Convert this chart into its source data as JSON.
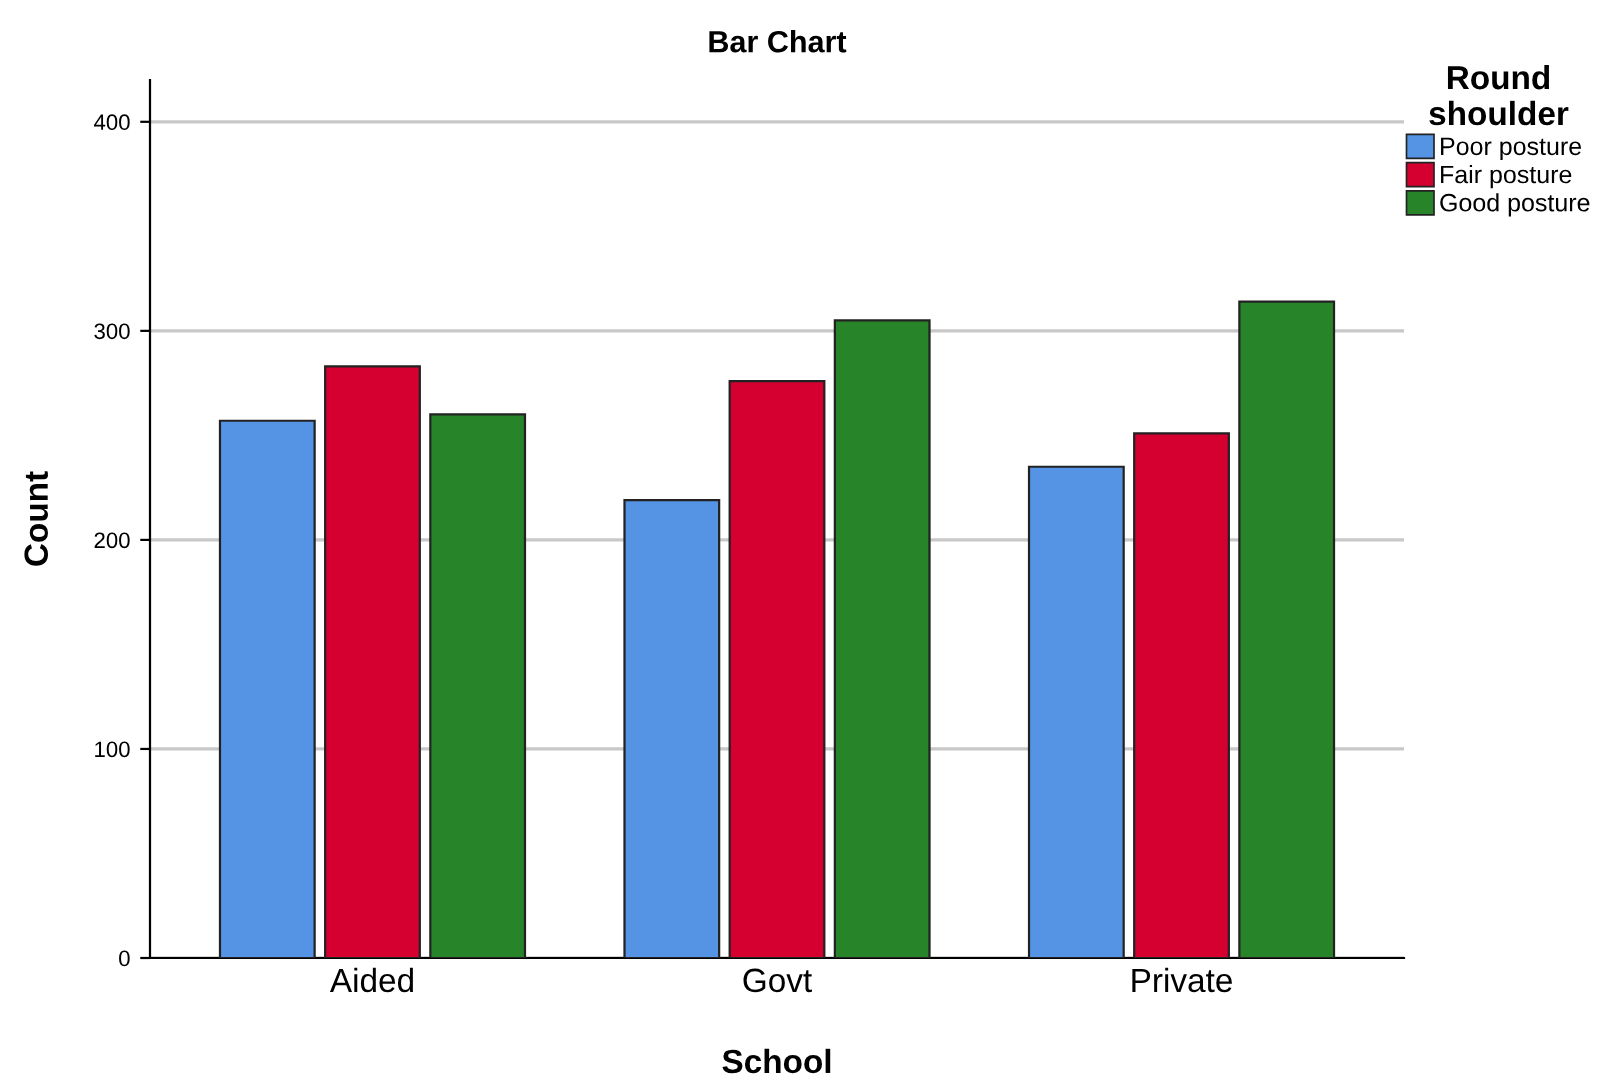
{
  "chart_data": {
    "type": "bar",
    "title": "Bar Chart",
    "xlabel": "School",
    "ylabel": "Count",
    "legend_title": "Round\nshoulder",
    "categories": [
      "Aided",
      "Govt",
      "Private"
    ],
    "series": [
      {
        "name": "Poor posture",
        "color": "#5593e4",
        "values": [
          257,
          219,
          235
        ]
      },
      {
        "name": "Fair posture",
        "color": "#d60030",
        "values": [
          283,
          276,
          251
        ]
      },
      {
        "name": "Good posture",
        "color": "#288428",
        "values": [
          260,
          305,
          314
        ]
      }
    ],
    "ylim": [
      0,
      420
    ],
    "yticks": [
      0,
      100,
      200,
      300,
      400
    ],
    "grid": "y",
    "legend": "top right"
  }
}
